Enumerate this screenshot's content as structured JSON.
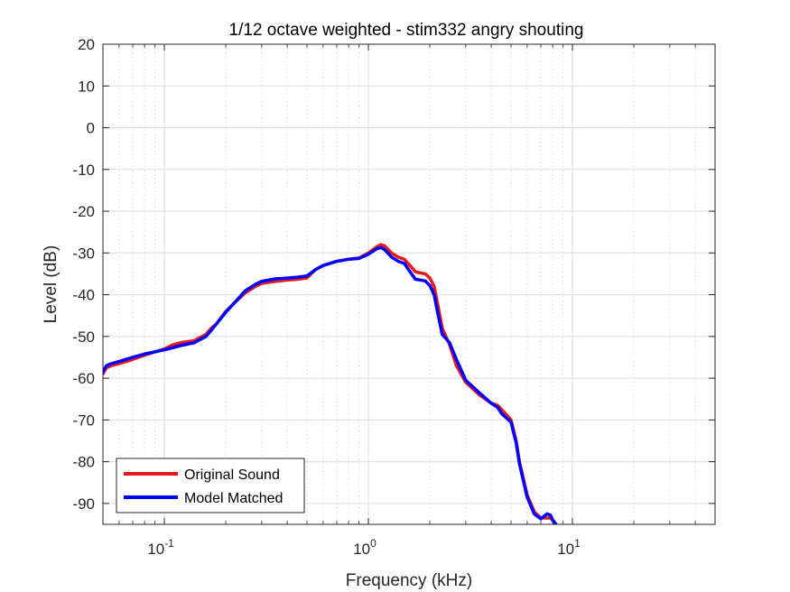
{
  "chart_data": {
    "type": "line",
    "title": "1/12 octave weighted - stim332 angry shouting",
    "xlabel": "Frequency (kHz)",
    "ylabel": "Level (dB)",
    "xscale": "log",
    "xlim": [
      0.05,
      50
    ],
    "ylim": [
      -95,
      20
    ],
    "grid": true,
    "legend_location": "bottom-left",
    "yticks": [
      "20",
      "10",
      "0",
      "-10",
      "-20",
      "-30",
      "-40",
      "-50",
      "-60",
      "-70",
      "-80",
      "-90"
    ],
    "xticks": [
      {
        "value": 0.1,
        "base": "10",
        "exp": "-1"
      },
      {
        "value": 1,
        "base": "10",
        "exp": "0"
      },
      {
        "value": 10,
        "base": "10",
        "exp": "1"
      }
    ],
    "series": [
      {
        "name": "Original Sound",
        "color": "#e41a1c",
        "x": [
          0.05,
          0.052,
          0.055,
          0.06,
          0.07,
          0.08,
          0.1,
          0.11,
          0.12,
          0.14,
          0.16,
          0.17,
          0.18,
          0.2,
          0.22,
          0.25,
          0.28,
          0.3,
          0.35,
          0.4,
          0.45,
          0.5,
          0.55,
          0.6,
          0.7,
          0.8,
          0.9,
          1.0,
          1.1,
          1.15,
          1.2,
          1.3,
          1.4,
          1.5,
          1.6,
          1.7,
          1.8,
          1.9,
          2.0,
          2.1,
          2.2,
          2.3,
          2.5,
          2.7,
          3.0,
          3.5,
          4.0,
          4.3,
          4.5,
          5.0,
          5.3,
          5.5,
          6.0,
          6.5,
          7.0,
          7.5,
          7.8,
          8.0,
          8.3
        ],
        "y": [
          -59,
          -57.5,
          -57,
          -56.5,
          -55.5,
          -54.5,
          -53,
          -52,
          -51.5,
          -51,
          -49.5,
          -48,
          -47,
          -44,
          -42,
          -39.5,
          -38,
          -37.3,
          -36.8,
          -36.5,
          -36.3,
          -36,
          -34,
          -33,
          -32,
          -31.5,
          -31.2,
          -30,
          -28.5,
          -28,
          -28.3,
          -30,
          -31,
          -31.5,
          -33,
          -34.5,
          -34.8,
          -35,
          -36,
          -38,
          -43,
          -48,
          -52,
          -57,
          -61,
          -64,
          -66,
          -66.5,
          -67.5,
          -70,
          -75,
          -80,
          -88,
          -92,
          -93.5,
          -93.5,
          -93.5,
          -94,
          -95
        ]
      },
      {
        "name": "Model Matched",
        "color": "#0000ff",
        "x": [
          0.05,
          0.052,
          0.055,
          0.06,
          0.07,
          0.08,
          0.1,
          0.11,
          0.12,
          0.14,
          0.16,
          0.17,
          0.18,
          0.2,
          0.22,
          0.25,
          0.28,
          0.3,
          0.35,
          0.4,
          0.45,
          0.5,
          0.55,
          0.6,
          0.7,
          0.8,
          0.9,
          1.0,
          1.1,
          1.15,
          1.2,
          1.3,
          1.4,
          1.5,
          1.6,
          1.7,
          1.8,
          1.9,
          2.0,
          2.1,
          2.2,
          2.3,
          2.5,
          2.7,
          3.0,
          3.5,
          4.0,
          4.3,
          4.5,
          5.0,
          5.3,
          5.5,
          6.0,
          6.5,
          7.0,
          7.5,
          7.8,
          8.0,
          8.3
        ],
        "y": [
          -58.5,
          -57,
          -56.5,
          -56,
          -55,
          -54.2,
          -53.2,
          -52.7,
          -52.2,
          -51.5,
          -50,
          -48.5,
          -47,
          -44.2,
          -42,
          -39,
          -37.5,
          -36.8,
          -36.2,
          -36,
          -35.8,
          -35.5,
          -34,
          -33,
          -32,
          -31.5,
          -31.3,
          -30.3,
          -29,
          -28.7,
          -29.2,
          -31,
          -32,
          -32.5,
          -34.5,
          -36.3,
          -36.5,
          -36.7,
          -37.8,
          -40,
          -45,
          -49.5,
          -51.5,
          -55.5,
          -60.5,
          -63.5,
          -66,
          -67,
          -68.5,
          -70.5,
          -75.5,
          -80.5,
          -88.5,
          -92.5,
          -93.7,
          -92.5,
          -92.8,
          -94,
          -95
        ]
      }
    ]
  }
}
